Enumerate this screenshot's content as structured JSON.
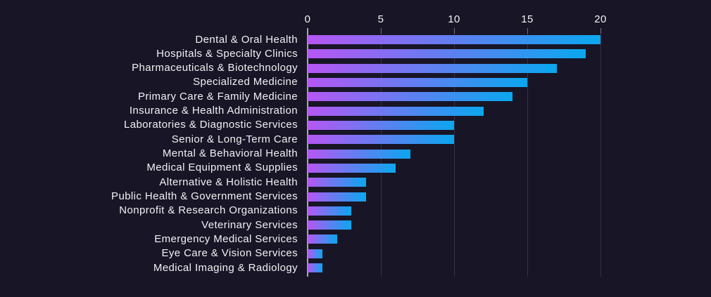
{
  "chart_data": {
    "type": "bar",
    "orientation": "horizontal",
    "title": "",
    "xlabel": "",
    "ylabel": "",
    "categories": [
      "Dental & Oral Health",
      "Hospitals & Specialty Clinics",
      "Pharmaceuticals & Biotechnology",
      "Specialized Medicine",
      "Primary Care & Family Medicine",
      "Insurance & Health Administration",
      "Laboratories & Diagnostic Services",
      "Senior & Long-Term Care",
      "Mental & Behavioral Health",
      "Medical Equipment & Supplies",
      "Alternative & Holistic Health",
      "Public Health & Government Services",
      "Nonprofit & Research Organizations",
      "Veterinary Services",
      "Emergency Medical Services",
      "Eye Care & Vision Services",
      "Medical Imaging & Radiology"
    ],
    "values": [
      20,
      19,
      17,
      15,
      14,
      12,
      10,
      10,
      7,
      6,
      4,
      4,
      3,
      3,
      2,
      1,
      1
    ],
    "xlim": [
      0,
      20
    ],
    "xticks": [
      0,
      5,
      10,
      15,
      20
    ],
    "grid": true,
    "legend": false,
    "colors": {
      "background": "#181526",
      "bar_gradient_start": "#b657f3",
      "bar_gradient_end": "#0aa7ef",
      "axis_line": "#a7a6b3",
      "gridline": "#33314a",
      "text": "#f2f1f5"
    }
  }
}
